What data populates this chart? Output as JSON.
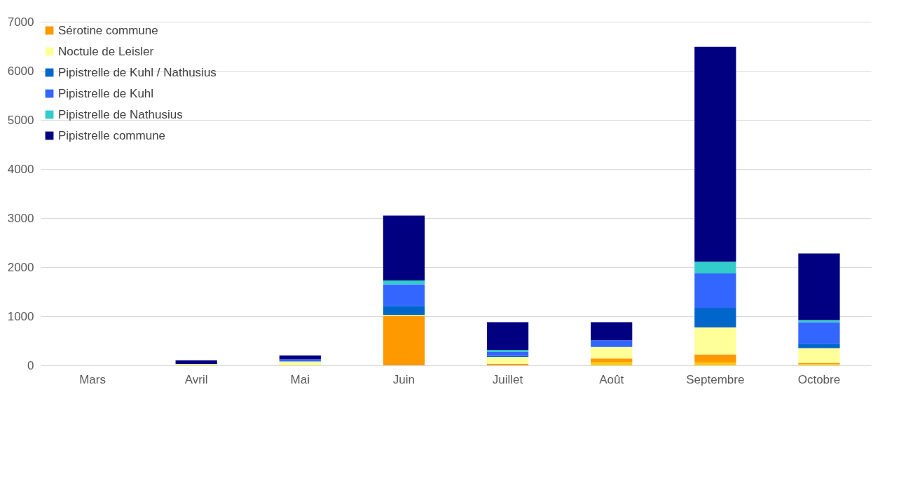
{
  "chart_data": {
    "type": "bar",
    "stacked": true,
    "categories": [
      "Mars",
      "Avril",
      "Mai",
      "Juin",
      "Juillet",
      "Août",
      "Septembre",
      "Octobre"
    ],
    "series": [
      {
        "color": "#ffcc00",
        "values": [
          0,
          0,
          0,
          0,
          0,
          60,
          50,
          20
        ]
      },
      {
        "name": "Sérotine commune",
        "color": "#ff9900",
        "values": [
          0,
          0,
          0,
          1010,
          30,
          80,
          170,
          30
        ]
      },
      {
        "name": "Noctule de Leisler",
        "color": "#ffff99",
        "values": [
          0,
          30,
          80,
          20,
          140,
          230,
          550,
          300
        ]
      },
      {
        "name": "Pipistrelle de Kuhl / Nathusius",
        "color": "#0066cc",
        "values": [
          0,
          0,
          0,
          180,
          20,
          10,
          400,
          90
        ]
      },
      {
        "name": "Pipistrelle de Kuhl",
        "color": "#3366ff",
        "values": [
          0,
          0,
          40,
          440,
          80,
          130,
          700,
          440
        ]
      },
      {
        "name": "Pipistrelle de Nathusius",
        "color": "#33cccc",
        "values": [
          0,
          0,
          0,
          80,
          40,
          0,
          240,
          40
        ]
      },
      {
        "name": "Pipistrelle commune",
        "color": "#000080",
        "values": [
          0,
          70,
          80,
          1320,
          570,
          370,
          4380,
          1360
        ]
      }
    ],
    "ylim": [
      0,
      7000
    ],
    "yticks": [
      0,
      1000,
      2000,
      3000,
      4000,
      5000,
      6000,
      7000
    ],
    "grid": "y",
    "legend": "top left"
  }
}
